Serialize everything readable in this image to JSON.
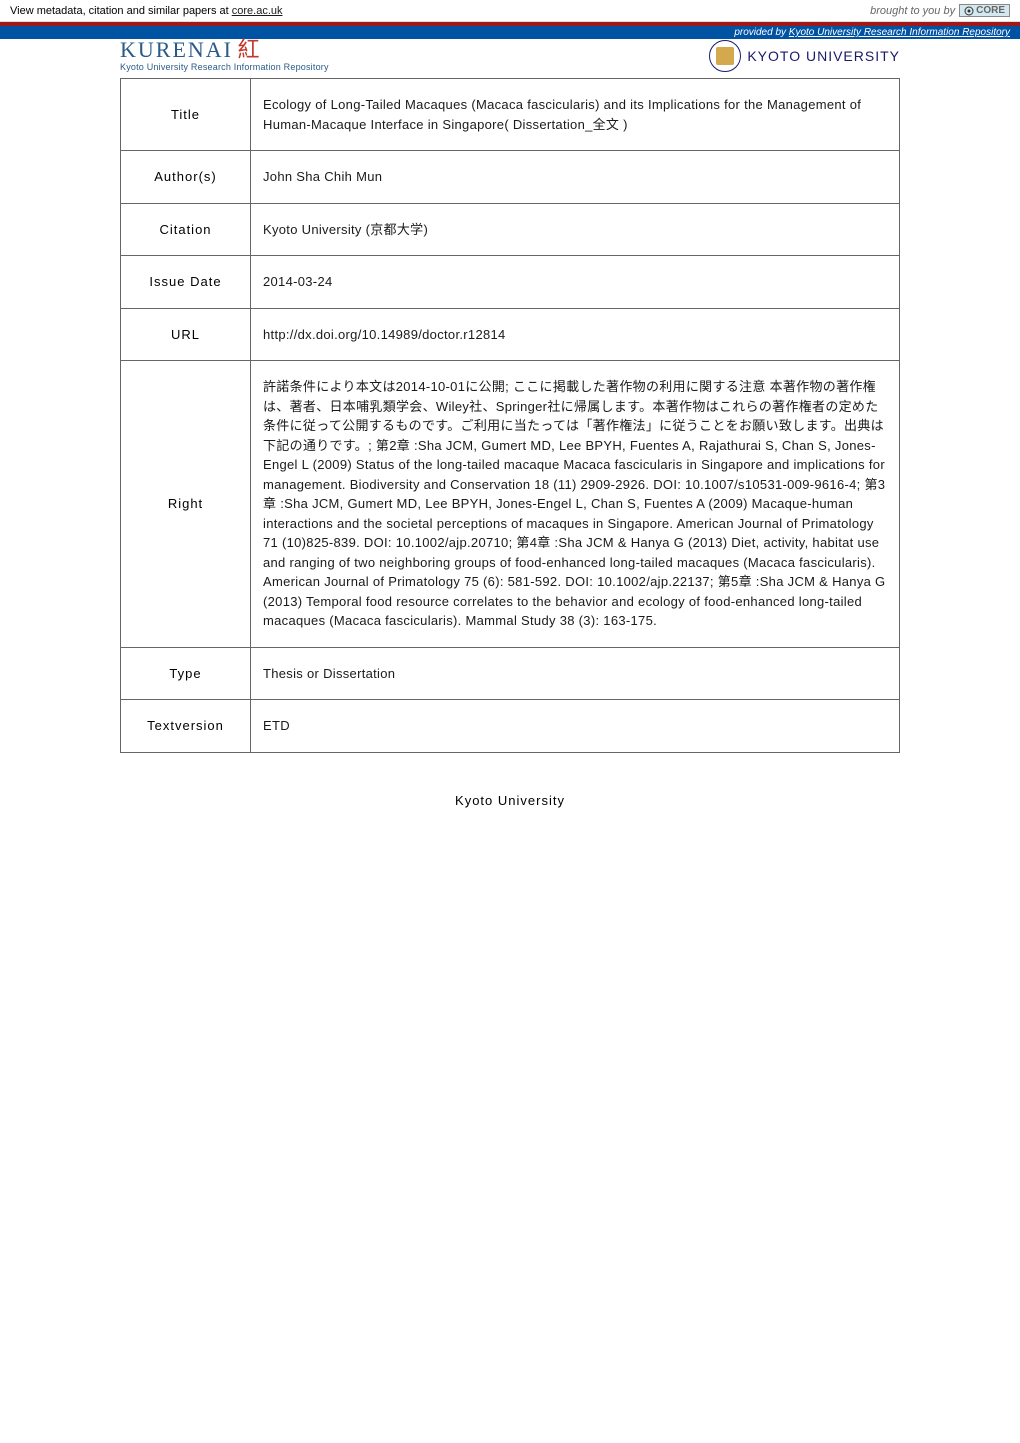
{
  "topbar": {
    "left_prefix": "View metadata, citation and similar papers at ",
    "left_link": "core.ac.uk",
    "right_prefix": "brought to you by ",
    "core_label": "CORE"
  },
  "blue_banner": {
    "text_prefix": "provided by ",
    "text_link": "Kyoto University Research Information Repository"
  },
  "header": {
    "logo_main": "KURENAI",
    "logo_kanji": "紅",
    "logo_sub": "Kyoto University Research Information Repository",
    "university": "KYOTO UNIVERSITY"
  },
  "table": {
    "rows": [
      {
        "label": "Title",
        "value": "Ecology of Long-Tailed Macaques (Macaca fascicularis) and its Implications for the Management of Human-Macaque Interface in Singapore( Dissertation_全文 )"
      },
      {
        "label": "Author(s)",
        "value": "John Sha Chih Mun"
      },
      {
        "label": "Citation",
        "value": "Kyoto University (京都大学)"
      },
      {
        "label": "Issue Date",
        "value": "2014-03-24"
      },
      {
        "label": "URL",
        "value": "http://dx.doi.org/10.14989/doctor.r12814"
      },
      {
        "label": "Right",
        "value": "許諾条件により本文は2014-10-01に公開; ここに掲載した著作物の利用に関する注意 本著作物の著作権は、著者、日本哺乳類学会、Wiley社、Springer社に帰属します。本著作物はこれらの著作権者の定めた条件に従って公開するものです。ご利用に当たっては「著作権法」に従うことをお願い致します。出典は下記の通りです。; 第2章 :Sha JCM, Gumert MD, Lee BPYH, Fuentes A, Rajathurai S, Chan S, Jones-Engel L (2009) Status of the long‐tailed macaque Macaca fascicularis in Singapore and implications for management. Biodiversity and Conservation 18 (11) 2909-2926. DOI: 10.1007/s10531-009-9616-4; 第3章 :Sha JCM, Gumert MD, Lee BPYH, Jones-Engel L, Chan S, Fuentes A (2009) Macaque-human interactions and the societal perceptions of macaques in Singapore. American Journal of Primatology 71 (10)825-839. DOI: 10.1002/ajp.20710; 第4章 :Sha JCM & Hanya G (2013) Diet, activity, habitat use and ranging of two neighboring groups of food-enhanced long-tailed macaques (Macaca fascicularis). American Journal of Primatology 75 (6): 581-592. DOI: 10.1002/ajp.22137; 第5章 :Sha JCM & Hanya G (2013) Temporal food resource correlates to the behavior and ecology of food-enhanced long-tailed macaques (Macaca fascicularis). Mammal Study 38 (3): 163-175."
      },
      {
        "label": "Type",
        "value": "Thesis or Dissertation"
      },
      {
        "label": "Textversion",
        "value": "ETD"
      }
    ]
  },
  "footer": {
    "text": "Kyoto University"
  },
  "colors": {
    "redbar": "#a01818",
    "bluebanner": "#0052a3",
    "logo_blue": "#2a5a8a",
    "univ_navy": "#1a1a6a",
    "border": "#666666"
  }
}
